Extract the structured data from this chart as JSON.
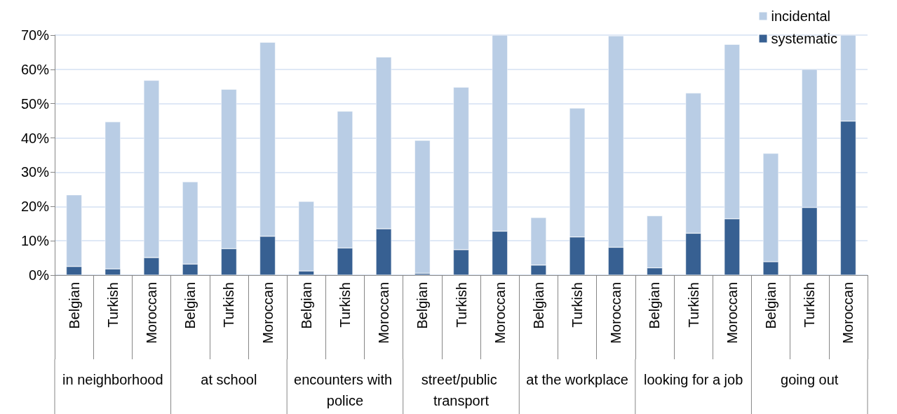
{
  "chart_data": {
    "type": "bar",
    "stacked": true,
    "categories": [
      "Belgian",
      "Turkish",
      "Moroccan",
      "Belgian",
      "Turkish",
      "Moroccan",
      "Belgian",
      "Turkish",
      "Moroccan",
      "Belgian",
      "Turkish",
      "Moroccan",
      "Belgian",
      "Turkish",
      "Moroccan",
      "Belgian",
      "Turkish",
      "Moroccan",
      "Belgian",
      "Turkish",
      "Moroccan"
    ],
    "series": [
      {
        "name": "systematic",
        "color": "#376092",
        "values": [
          2.5,
          1.8,
          5.1,
          3.2,
          7.7,
          11.3,
          1.2,
          7.9,
          13.5,
          0.5,
          7.4,
          12.8,
          2.9,
          11.1,
          8.1,
          2.1,
          12.2,
          16.4,
          3.9,
          19.7,
          44.9
        ]
      },
      {
        "name": "incidental",
        "color": "#b9cde5",
        "values": [
          20.9,
          42.9,
          51.7,
          24.0,
          46.5,
          56.6,
          20.3,
          39.9,
          50.1,
          38.8,
          47.4,
          57.2,
          13.9,
          37.6,
          61.7,
          15.2,
          40.9,
          50.9,
          31.6,
          40.3,
          25.1
        ]
      }
    ],
    "annotations": [
      "in neighborhood",
      "at school",
      "encounters with police",
      "street/public transport",
      "at the workplace",
      "looking for a job",
      "going out"
    ],
    "ylim": [
      0,
      70
    ],
    "yticks": [
      {
        "value": 0,
        "label": "0%"
      },
      {
        "value": 10,
        "label": "10%"
      },
      {
        "value": 20,
        "label": "20%"
      },
      {
        "value": 30,
        "label": "30%"
      },
      {
        "value": 40,
        "label": "40%"
      },
      {
        "value": 50,
        "label": "50%"
      },
      {
        "value": 60,
        "label": "60%"
      },
      {
        "value": 70,
        "label": "70%"
      }
    ],
    "grid": "y",
    "legend": "top right"
  }
}
